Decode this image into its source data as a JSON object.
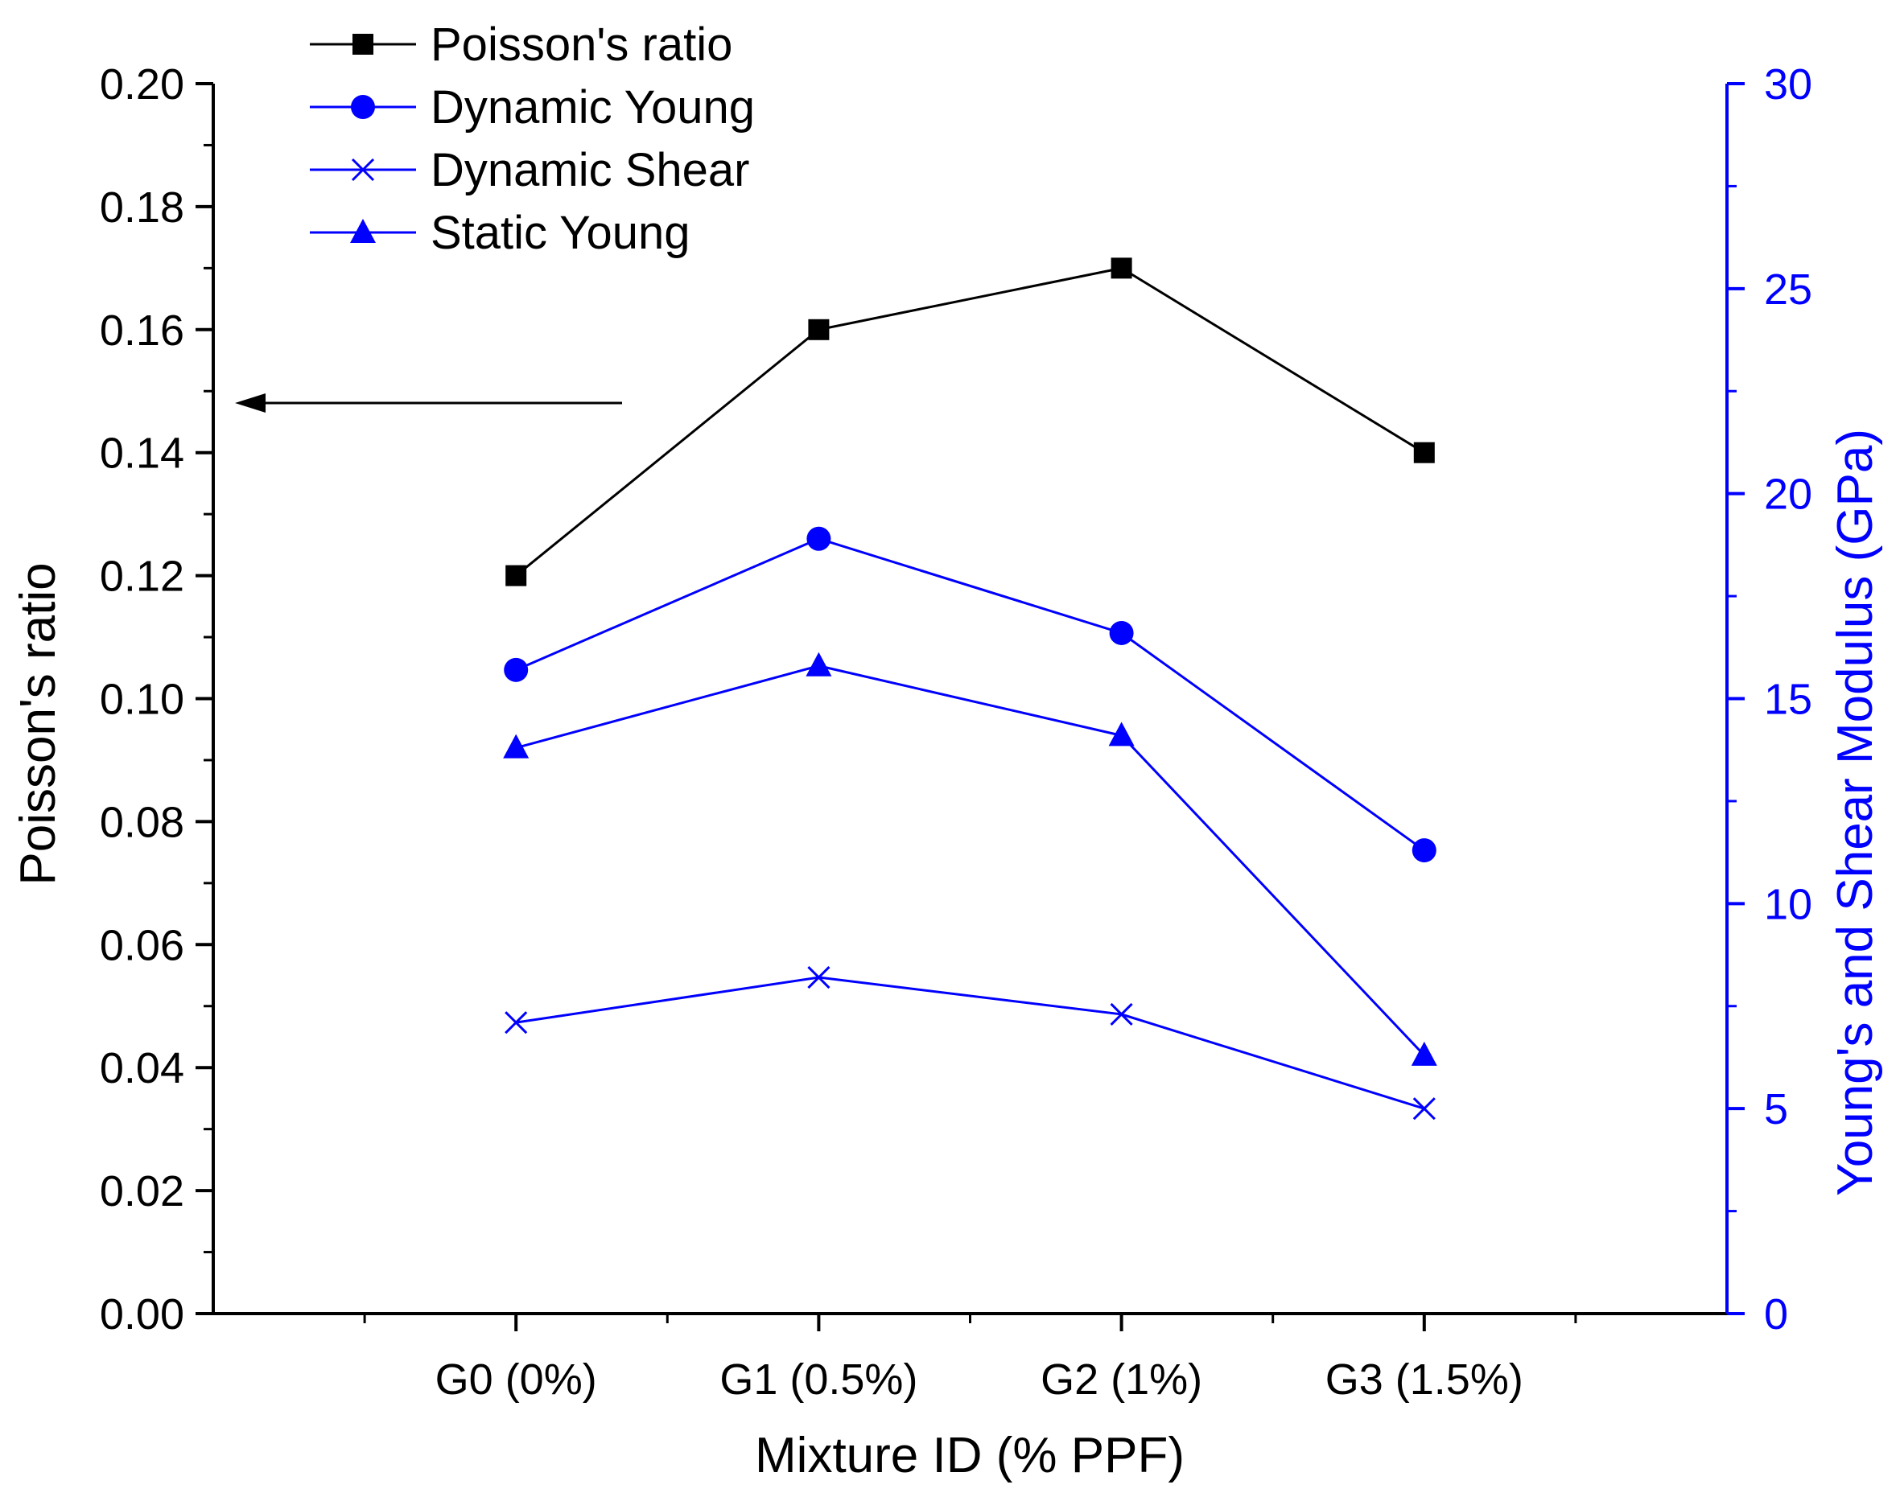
{
  "chart_data": {
    "type": "line",
    "categories": [
      "G0 (0%)",
      "G1 (0.5%)",
      "G2 (1%)",
      "G3 (1.5%)"
    ],
    "xlabel": "Mixture ID (% PPF)",
    "ylabel_left": "Poisson's ratio",
    "ylabel_right": "Young's and Shear Modulus (GPa)",
    "ylim_left": [
      0,
      0.2
    ],
    "ylim_right": [
      0,
      30
    ],
    "left_ticks": [
      "0.00",
      "0.02",
      "0.04",
      "0.06",
      "0.08",
      "0.10",
      "0.12",
      "0.14",
      "0.16",
      "0.18",
      "0.20"
    ],
    "right_ticks": [
      "0",
      "5",
      "10",
      "15",
      "20",
      "25",
      "30"
    ],
    "series": [
      {
        "name": "Poisson's ratio",
        "axis": "left",
        "marker": "square",
        "color": "#000000",
        "values": [
          0.12,
          0.16,
          0.17,
          0.14
        ]
      },
      {
        "name": "Dynamic Young",
        "axis": "right",
        "marker": "circle",
        "color": "#0000ff",
        "values": [
          15.7,
          18.9,
          16.6,
          11.3
        ]
      },
      {
        "name": "Dynamic Shear",
        "axis": "right",
        "marker": "x",
        "color": "#0000ff",
        "values": [
          7.1,
          8.2,
          7.3,
          5.0
        ]
      },
      {
        "name": "Static Young",
        "axis": "right",
        "marker": "triangle",
        "color": "#0000ff",
        "values": [
          13.8,
          15.8,
          14.1,
          6.3
        ]
      }
    ],
    "legend_position": "top-left",
    "annotation": "arrow pointing to left axis",
    "grid": false
  }
}
